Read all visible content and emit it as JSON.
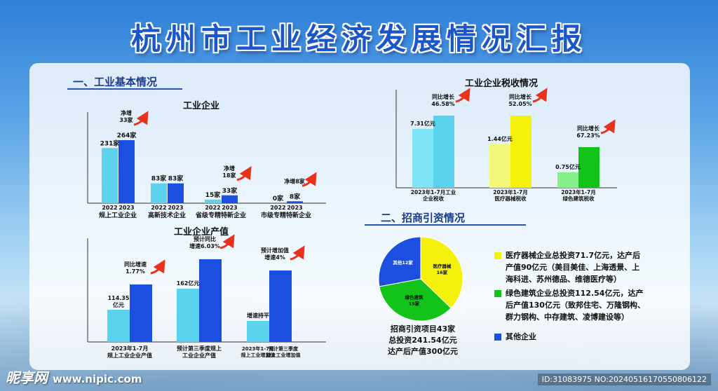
{
  "page": {
    "title": "杭州市工业经济发展情况汇报",
    "watermark_left": "昵享网",
    "watermark_left_url": "www.nipic.com",
    "watermark_right": "ID:31083975 NO:20240516170550806122"
  },
  "sections": {
    "basic": "一、工业基本情况",
    "invest": "二、招商引资情况"
  },
  "colors": {
    "light_cyan": "#5cd3ee",
    "blue": "#1c4fe0",
    "yellow_light": "#f3f77a",
    "yellow": "#f4f20a",
    "green_light": "#85ef8a",
    "green": "#12c31a",
    "arrow_red": "#e8321c"
  },
  "chart_data": [
    {
      "type": "bar",
      "title": "工业企业",
      "categories": [
        "规上工业企业",
        "高新技术企业",
        "省级专精特新企业",
        "市级专精特新企业"
      ],
      "series": [
        {
          "name": "2022",
          "values": [
            231,
            83,
            15,
            0
          ]
        },
        {
          "name": "2023",
          "values": [
            264,
            83,
            33,
            8
          ]
        }
      ],
      "value_labels": [
        [
          "231家",
          "264家"
        ],
        [
          "83家",
          "83家"
        ],
        [
          "15家",
          "33家"
        ],
        [
          "0家",
          "8家"
        ]
      ],
      "annotations": [
        "净增\n33家",
        "",
        "净增\n18家",
        "净增8家"
      ],
      "year_labels": [
        "2022",
        "2023"
      ],
      "ylim": [
        0,
        300
      ]
    },
    {
      "type": "bar",
      "title": "工业企业产值",
      "categories": [
        "2023年1-7月\n规上工业企业产值",
        "预计第三季度规上\n工业企业产值",
        "2023年1-7月\n规上工业增加值|预计第三季度\n规上工业增加值"
      ],
      "series": [
        {
          "name": "base",
          "values": [
            114.35,
            162,
            0.95
          ]
        },
        {
          "name": "growth",
          "values": [
            1.77,
            6.03,
            4
          ]
        }
      ],
      "value_labels": [
        "114.35\n亿元",
        "162亿元",
        "增速持平"
      ],
      "annotations": [
        "同比增速\n1.77%",
        "预计同比\n增速6.03%",
        "预计增加值\n增速4%"
      ]
    },
    {
      "type": "bar",
      "title": "工业企业税收情况",
      "categories": [
        "2023年1-7月工业\n企业税收",
        "2023年1-7月\n医疗器械税收",
        "2023年1-7月\n绿色建筑税收"
      ],
      "series": [
        {
          "name": "tax",
          "values": [
            7.31,
            1.44,
            0.75
          ]
        },
        {
          "name": "growth_percent",
          "values": [
            46.58,
            52.05,
            67.23
          ]
        }
      ],
      "value_labels": [
        "7.31亿元",
        "1.44亿元",
        "0.75亿元"
      ],
      "annotations": [
        "同比增长\n46.58%",
        "同比增长\n52.05%",
        "同比增长\n67.23%"
      ]
    },
    {
      "type": "pie",
      "slices": [
        {
          "label": "医疗器械",
          "value": 16,
          "value_label": "16家",
          "color": "#f4f20a"
        },
        {
          "label": "绿色建筑",
          "value": 15,
          "value_label": "15家",
          "color": "#12c31a"
        },
        {
          "label": "其他",
          "value": 12,
          "value_label": "12家",
          "color": "#1c4fe0"
        }
      ],
      "summary": [
        "招商引资项目43家",
        "总投资241.54亿元",
        "达产后产值300亿元"
      ],
      "legend": [
        {
          "color": "#f4f20a",
          "text": "医疗器械企业总投资71.7亿元，达产后产值90亿元（美目美佳、上海透景、上海科进、苏州德品、维德医疗等）"
        },
        {
          "color": "#12c31a",
          "text": "绿色建筑企业总投资112.54亿元，达产后产值130亿元（致邦住宅、万隆钢构、群力钢构、中存建筑、凌博建设等）"
        },
        {
          "color": "#1c4fe0",
          "text": "其他企业"
        }
      ]
    }
  ]
}
